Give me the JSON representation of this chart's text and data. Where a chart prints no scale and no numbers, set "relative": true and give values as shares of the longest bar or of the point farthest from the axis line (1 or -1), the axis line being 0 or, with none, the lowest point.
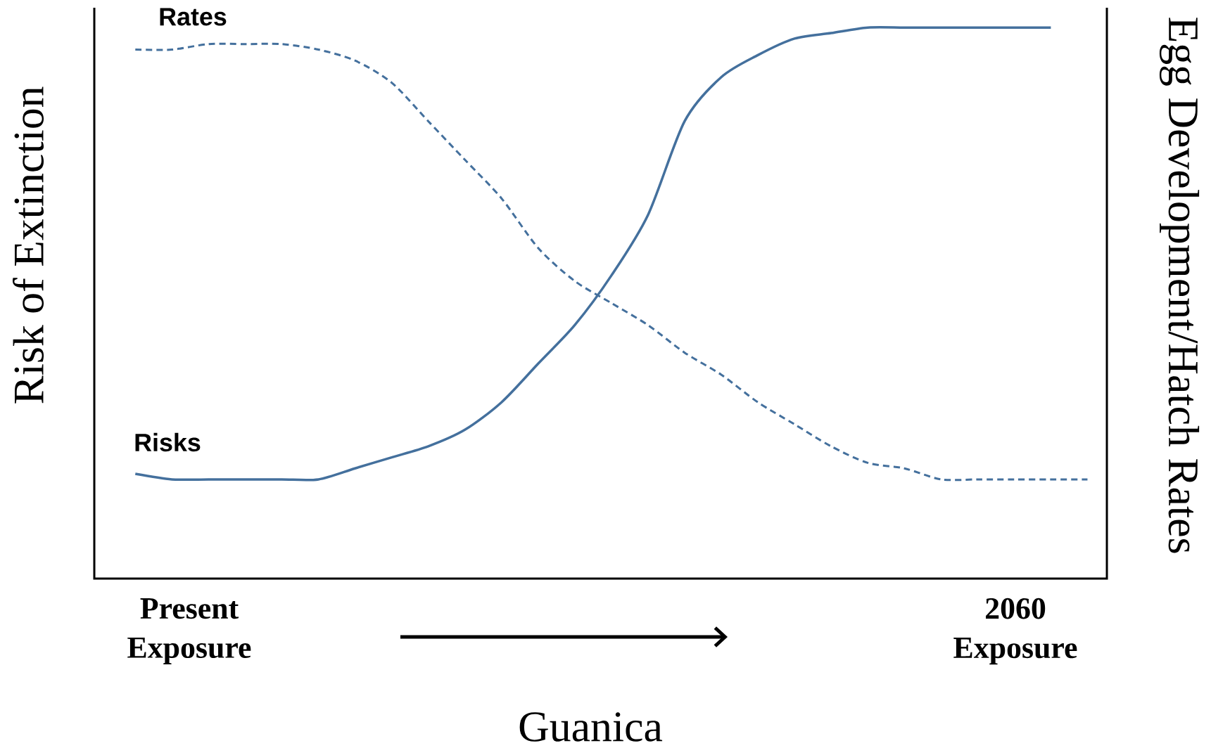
{
  "chart_data": {
    "type": "line",
    "relative": true,
    "xlabel": "Guanica",
    "ylabel": "Risk of Extinction",
    "y2label": "Egg Development/Hatch Rates",
    "annotations": [
      "Present Exposure",
      "2060 Exposure"
    ],
    "categories": [
      null,
      null,
      null,
      null,
      null,
      null,
      null,
      null,
      null,
      null,
      null,
      null,
      null,
      null,
      null,
      null,
      null,
      null,
      null,
      null,
      null,
      null,
      null,
      null,
      null,
      null,
      null
    ],
    "series": [
      {
        "name": "Risks",
        "color": "#44709d",
        "line_style": "solid",
        "values": [
          0.19,
          0.18,
          0.18,
          0.18,
          0.18,
          0.18,
          0.2,
          0.22,
          0.24,
          0.27,
          0.32,
          0.39,
          0.46,
          0.55,
          0.66,
          0.83,
          0.91,
          0.95,
          0.98,
          0.99,
          1,
          1,
          1,
          1,
          1,
          1,
          null
        ]
      },
      {
        "name": "Rates",
        "color": "#44709d",
        "line_style": "dashed",
        "values": [
          0.96,
          0.96,
          0.97,
          0.97,
          0.97,
          0.96,
          0.94,
          0.9,
          0.83,
          0.76,
          0.69,
          0.6,
          0.54,
          0.5,
          0.46,
          0.41,
          0.37,
          0.32,
          0.28,
          0.24,
          0.21,
          0.2,
          0.18,
          0.18,
          0.18,
          0.18,
          0.18
        ]
      }
    ]
  }
}
